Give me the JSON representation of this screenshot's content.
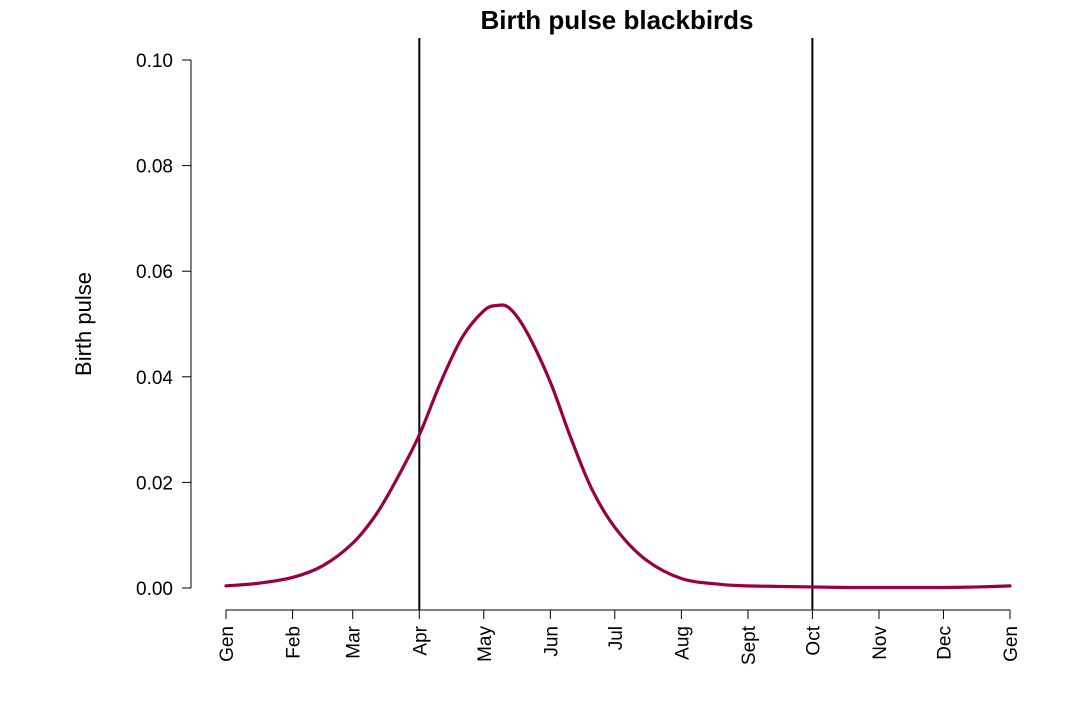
{
  "chart_data": {
    "type": "line",
    "title": "Birth pulse blackbirds",
    "xlabel": "",
    "ylabel": "Birth pulse",
    "x_tick_labels": [
      "Gen",
      "Feb",
      "Mar",
      "Apr",
      "May",
      "Jun",
      "Jul",
      "Aug",
      "Sept",
      "Oct",
      "Nov",
      "Dec",
      "Gen"
    ],
    "x_ticks": [
      0,
      31,
      59,
      90,
      120,
      151,
      181,
      212,
      243,
      273,
      304,
      334,
      365
    ],
    "xlim": [
      0,
      365
    ],
    "ylim": [
      0,
      0.1
    ],
    "y_ticks": [
      0.0,
      0.02,
      0.04,
      0.06,
      0.08,
      0.1
    ],
    "y_tick_labels": [
      "0.00",
      "0.02",
      "0.04",
      "0.06",
      "0.08",
      "0.10"
    ],
    "grid": false,
    "vertical_lines": [
      90,
      273
    ],
    "series": [
      {
        "color": "#990044",
        "x": [
          0,
          15,
          31,
          45,
          59,
          70,
          80,
          90,
          100,
          110,
          120,
          126,
          132,
          140,
          151,
          160,
          170,
          181,
          195,
          212,
          230,
          243,
          258,
          273,
          290,
          304,
          320,
          334,
          350,
          365
        ],
        "y": [
          0.0004,
          0.0009,
          0.002,
          0.0042,
          0.0085,
          0.014,
          0.021,
          0.029,
          0.039,
          0.0475,
          0.0525,
          0.0535,
          0.053,
          0.0485,
          0.039,
          0.029,
          0.019,
          0.0115,
          0.0055,
          0.0018,
          0.0007,
          0.0004,
          0.0003,
          0.0002,
          0.0001,
          0.0001,
          0.0001,
          0.0001,
          0.0002,
          0.0004
        ]
      }
    ]
  }
}
